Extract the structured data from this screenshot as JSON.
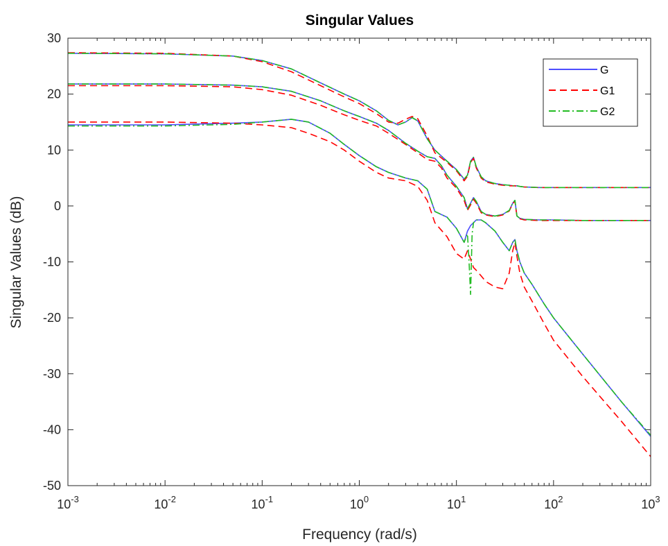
{
  "chart_data": {
    "type": "line",
    "title": "Singular Values",
    "xlabel": "Frequency (rad/s)",
    "ylabel": "Singular Values (dB)",
    "xscale": "log",
    "xlim": [
      0.001,
      1000
    ],
    "ylim": [
      -50,
      30
    ],
    "x_ticks": [
      {
        "base": "10",
        "exp": "-3"
      },
      {
        "base": "10",
        "exp": "-2"
      },
      {
        "base": "10",
        "exp": "-1"
      },
      {
        "base": "10",
        "exp": "0"
      },
      {
        "base": "10",
        "exp": "1"
      },
      {
        "base": "10",
        "exp": "2"
      },
      {
        "base": "10",
        "exp": "3"
      }
    ],
    "y_ticks": [
      "-50",
      "-40",
      "-30",
      "-20",
      "-10",
      "0",
      "10",
      "20",
      "30"
    ],
    "grid": false,
    "legend_position": "top-right",
    "series": [
      {
        "name": "G",
        "color": "#4d4dff",
        "style": "solid",
        "curves": [
          {
            "x": [
              0.001,
              0.01,
              0.05,
              0.1,
              0.2,
              0.4,
              0.7,
              1,
              1.5,
              2,
              2.5,
              3,
              3.5,
              4,
              5,
              6,
              8,
              10,
              12,
              13,
              14,
              15,
              16,
              18,
              20,
              25,
              30,
              35,
              38,
              40,
              42,
              45,
              50,
              70,
              100,
              200,
              500,
              1000
            ],
            "y": [
              27.3,
              27.2,
              26.8,
              26.0,
              24.5,
              22.0,
              20.0,
              18.8,
              17.0,
              15.3,
              14.5,
              15.0,
              15.8,
              15.2,
              12.0,
              10.0,
              8.0,
              6.5,
              4.8,
              5.5,
              8.0,
              8.7,
              7.0,
              5.2,
              4.5,
              4.0,
              3.8,
              3.7,
              3.6,
              3.6,
              3.6,
              3.5,
              3.4,
              3.3,
              3.3,
              3.3,
              3.3,
              3.3
            ]
          },
          {
            "x": [
              0.001,
              0.01,
              0.05,
              0.1,
              0.2,
              0.4,
              0.7,
              1,
              1.5,
              2,
              3,
              4,
              5,
              6,
              7,
              8,
              10,
              12,
              13,
              14,
              15,
              16,
              18,
              20,
              25,
              30,
              35,
              38,
              40,
              42,
              45,
              50,
              70,
              100,
              200,
              500,
              1000
            ],
            "y": [
              21.8,
              21.8,
              21.6,
              21.3,
              20.5,
              18.8,
              17.0,
              16.0,
              14.8,
              13.5,
              11.2,
              9.8,
              8.8,
              8.5,
              7.2,
              5.5,
              3.5,
              1.5,
              -0.5,
              0.5,
              1.5,
              0.8,
              -1.0,
              -1.5,
              -1.8,
              -1.5,
              -0.8,
              0.5,
              1.0,
              -1.8,
              -2.2,
              -2.4,
              -2.5,
              -2.5,
              -2.6,
              -2.6,
              -2.6
            ]
          },
          {
            "x": [
              0.001,
              0.01,
              0.05,
              0.1,
              0.2,
              0.3,
              0.5,
              0.7,
              1,
              1.5,
              2,
              3,
              4,
              5,
              6,
              8,
              10,
              12,
              13,
              14,
              15,
              16,
              18,
              20,
              25,
              30,
              35,
              38,
              40,
              42,
              45,
              50,
              60,
              80,
              100,
              200,
              500,
              1000
            ],
            "y": [
              14.5,
              14.5,
              14.8,
              15.0,
              15.5,
              15.0,
              13.0,
              11.0,
              9.0,
              7.0,
              6.0,
              5.0,
              4.5,
              3.0,
              -1.0,
              -2.0,
              -4.0,
              -6.5,
              -4.5,
              -3.5,
              -3.0,
              -2.5,
              -2.5,
              -3.0,
              -4.5,
              -6.5,
              -8.0,
              -6.5,
              -6.0,
              -8.0,
              -10.0,
              -12.0,
              -14.0,
              -17.5,
              -20.0,
              -26.5,
              -35.0,
              -41.2
            ]
          }
        ]
      },
      {
        "name": "G1",
        "color": "#ff0000",
        "style": "dashed",
        "curves": [
          {
            "x": [
              0.001,
              0.01,
              0.05,
              0.1,
              0.2,
              0.4,
              0.7,
              1,
              1.5,
              2,
              2.5,
              3,
              3.5,
              4,
              5,
              6,
              8,
              10,
              12,
              13,
              14,
              15,
              16,
              18,
              20,
              25,
              30,
              35,
              38,
              40,
              42,
              45,
              50,
              70,
              100,
              200,
              500,
              1000
            ],
            "y": [
              27.4,
              27.3,
              26.8,
              25.8,
              24.0,
              21.5,
              19.5,
              18.3,
              16.5,
              15.0,
              14.8,
              15.5,
              16.0,
              15.6,
              12.5,
              9.5,
              7.8,
              6.3,
              4.5,
              5.3,
              7.8,
              8.5,
              6.8,
              5.0,
              4.3,
              3.9,
              3.7,
              3.6,
              3.6,
              3.6,
              3.5,
              3.5,
              3.4,
              3.3,
              3.3,
              3.3,
              3.3,
              3.3
            ]
          },
          {
            "x": [
              0.001,
              0.01,
              0.05,
              0.1,
              0.2,
              0.4,
              0.7,
              1,
              1.5,
              2,
              3,
              4,
              5,
              6,
              7,
              8,
              10,
              12,
              13,
              14,
              15,
              16,
              18,
              20,
              25,
              30,
              35,
              38,
              40,
              42,
              45,
              50,
              70,
              100,
              200,
              500,
              1000
            ],
            "y": [
              21.5,
              21.5,
              21.3,
              20.8,
              19.8,
              18.0,
              16.3,
              15.3,
              14.3,
              13.0,
              11.0,
              9.5,
              8.3,
              8.0,
              6.8,
              5.0,
              3.2,
              1.0,
              -0.8,
              0.2,
              1.2,
              0.5,
              -1.2,
              -1.6,
              -1.9,
              -1.6,
              -0.9,
              0.4,
              0.9,
              -1.9,
              -2.3,
              -2.5,
              -2.6,
              -2.6,
              -2.6,
              -2.6,
              -2.6
            ]
          },
          {
            "x": [
              0.001,
              0.01,
              0.05,
              0.1,
              0.2,
              0.3,
              0.5,
              0.7,
              1,
              1.5,
              2,
              3,
              4,
              5,
              6,
              8,
              10,
              12,
              13,
              14,
              15,
              16,
              18,
              20,
              25,
              30,
              35,
              38,
              40,
              42,
              45,
              50,
              60,
              80,
              100,
              200,
              500,
              1000
            ],
            "y": [
              15.0,
              15.0,
              14.8,
              14.5,
              14.0,
              13.0,
              11.5,
              10.0,
              8.0,
              6.0,
              5.0,
              4.5,
              3.5,
              1.0,
              -3.0,
              -5.5,
              -8.5,
              -9.5,
              -8.0,
              -9.5,
              -11.0,
              -11.5,
              -12.5,
              -13.5,
              -14.5,
              -14.8,
              -12.0,
              -8.0,
              -6.5,
              -9.0,
              -12.0,
              -14.5,
              -17.0,
              -21.0,
              -24.0,
              -30.5,
              -38.5,
              -44.8
            ]
          }
        ]
      },
      {
        "name": "G2",
        "color": "#22bb22",
        "style": "dashdot",
        "curves": [
          {
            "x": [
              0.001,
              0.01,
              0.05,
              0.1,
              0.2,
              0.4,
              0.7,
              1,
              1.5,
              2,
              2.5,
              3,
              3.5,
              4,
              5,
              6,
              8,
              10,
              12,
              13,
              14,
              15,
              16,
              18,
              20,
              25,
              30,
              35,
              38,
              40,
              42,
              45,
              50,
              70,
              100,
              200,
              500,
              1000
            ],
            "y": [
              27.3,
              27.2,
              26.8,
              26.0,
              24.5,
              22.0,
              20.0,
              18.8,
              17.0,
              15.3,
              14.5,
              15.0,
              15.8,
              15.2,
              12.0,
              10.0,
              8.0,
              6.5,
              4.8,
              5.5,
              8.0,
              8.7,
              7.0,
              5.2,
              4.5,
              4.0,
              3.8,
              3.7,
              3.6,
              3.6,
              3.6,
              3.5,
              3.4,
              3.3,
              3.3,
              3.3,
              3.3,
              3.3
            ]
          },
          {
            "x": [
              0.001,
              0.01,
              0.05,
              0.1,
              0.2,
              0.4,
              0.7,
              1,
              1.5,
              2,
              3,
              4,
              5,
              6,
              7,
              8,
              10,
              12,
              13,
              14,
              15,
              16,
              18,
              20,
              25,
              30,
              35,
              38,
              40,
              42,
              45,
              50,
              70,
              100,
              200,
              500,
              1000
            ],
            "y": [
              21.8,
              21.8,
              21.6,
              21.3,
              20.5,
              18.8,
              17.0,
              16.0,
              14.8,
              13.5,
              11.2,
              9.8,
              8.8,
              8.5,
              7.2,
              5.5,
              3.5,
              1.5,
              -0.5,
              0.5,
              1.5,
              0.8,
              -1.0,
              -1.5,
              -1.8,
              -1.5,
              -0.8,
              0.5,
              1.0,
              -1.8,
              -2.2,
              -2.4,
              -2.5,
              -2.5,
              -2.6,
              -2.6,
              -2.6
            ]
          },
          {
            "x": [
              0.001,
              0.01,
              0.05,
              0.1,
              0.2,
              0.3,
              0.5,
              0.7,
              1,
              1.5,
              2,
              3,
              4,
              5,
              6,
              8,
              10,
              12,
              13,
              13.5,
              14,
              14.5,
              15,
              16,
              18,
              20,
              25,
              30,
              35,
              38,
              40,
              42,
              45,
              50,
              60,
              80,
              100,
              200,
              500,
              1000
            ],
            "y": [
              14.3,
              14.3,
              14.6,
              15.0,
              15.5,
              15.0,
              13.0,
              11.0,
              9.0,
              7.0,
              6.0,
              5.0,
              4.5,
              3.0,
              -1.0,
              -2.0,
              -4.0,
              -6.5,
              -5.0,
              -10.0,
              -15.8,
              -5.0,
              -3.0,
              -2.5,
              -2.5,
              -3.0,
              -4.5,
              -6.5,
              -8.0,
              -6.5,
              -6.0,
              -8.0,
              -10.0,
              -12.0,
              -14.0,
              -17.5,
              -20.0,
              -26.5,
              -35.0,
              -41.0
            ]
          }
        ]
      }
    ]
  }
}
